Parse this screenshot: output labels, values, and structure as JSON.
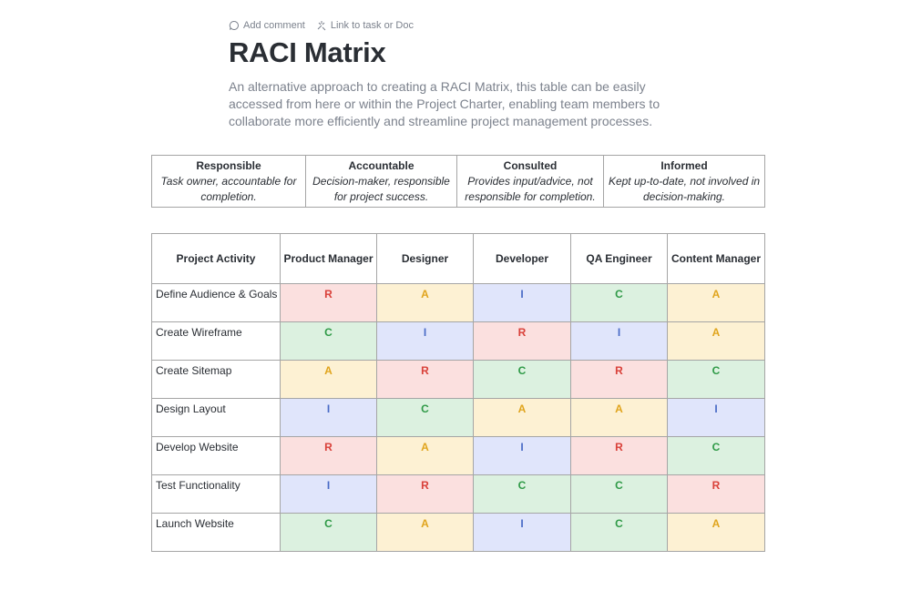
{
  "toolbar": {
    "comment": "Add comment",
    "link": "Link to task or Doc"
  },
  "header": {
    "title": "RACI Matrix",
    "description": "An alternative approach to creating a RACI Matrix, this table can be easily accessed from here or within the Project Charter, enabling team members to collaborate more efficiently and streamline project management processes."
  },
  "legend": {
    "columns": [
      {
        "title": "Responsible",
        "text": "Task owner, accountable for completion."
      },
      {
        "title": "Accountable",
        "text": "Decision-maker, responsible for project success."
      },
      {
        "title": "Consulted",
        "text": "Provides input/advice, not responsible for completion."
      },
      {
        "title": "Informed",
        "text": "Kept up-to-date, not involved in decision-making."
      }
    ]
  },
  "table": {
    "headers": [
      "Project Activity",
      "Product Manager",
      "Designer",
      "Developer",
      "QA Engineer",
      "Content Manager"
    ],
    "rows": [
      [
        "Define Audience & Goals",
        "R",
        "A",
        "I",
        "C",
        "A"
      ],
      [
        "Create Wireframe",
        "C",
        "I",
        "R",
        "I",
        "A"
      ],
      [
        "Create Sitemap",
        "A",
        "R",
        "C",
        "R",
        "C"
      ],
      [
        "Design Layout",
        "I",
        "C",
        "A",
        "A",
        "I"
      ],
      [
        "Develop Website",
        "R",
        "A",
        "I",
        "R",
        "C"
      ],
      [
        "Test Functionality",
        "I",
        "R",
        "C",
        "C",
        "R"
      ],
      [
        "Launch Website",
        "C",
        "A",
        "I",
        "C",
        "A"
      ]
    ]
  }
}
